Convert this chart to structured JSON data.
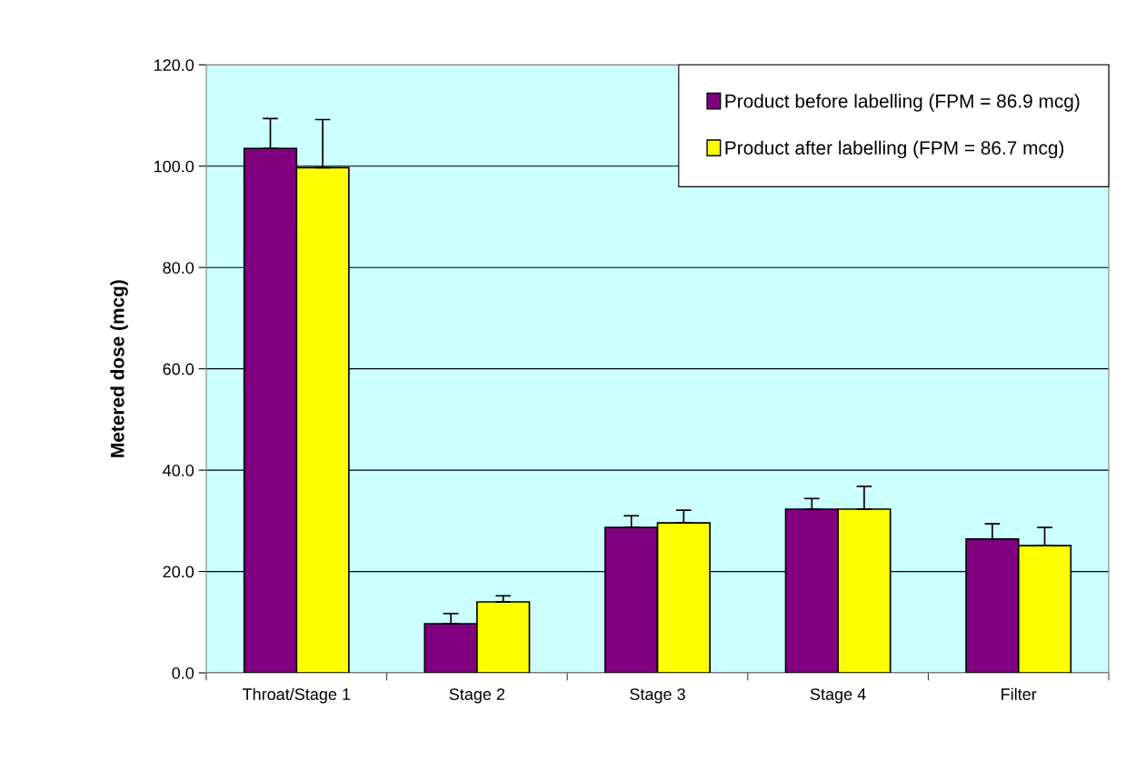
{
  "chart_data": {
    "type": "bar",
    "ylabel": "Metered dose (mcg)",
    "categories": [
      "Throat/Stage 1",
      "Stage 2",
      "Stage 3",
      "Stage 4",
      "Filter"
    ],
    "series": [
      {
        "name": "Product before labelling (FPM = 86.9 mcg)",
        "color": "#800080",
        "values": [
          103.5,
          9.7,
          28.7,
          32.3,
          26.4
        ],
        "errors": [
          [
            103.5,
            109.4
          ],
          [
            9.7,
            11.7
          ],
          [
            28.7,
            31.0
          ],
          [
            32.3,
            34.4
          ],
          [
            26.4,
            29.4
          ]
        ]
      },
      {
        "name": "Product after labelling (FPM = 86.7 mcg)",
        "color": "#ffff00",
        "values": [
          99.7,
          14.0,
          29.6,
          32.3,
          25.1
        ],
        "errors": [
          [
            99.7,
            109.2
          ],
          [
            14.0,
            15.2
          ],
          [
            29.6,
            32.1
          ],
          [
            32.3,
            36.8
          ],
          [
            25.1,
            28.7
          ]
        ]
      }
    ],
    "ylim": [
      0,
      120
    ],
    "yticks": [
      {
        "value": 0,
        "label": "0.0"
      },
      {
        "value": 20,
        "label": "20.0"
      },
      {
        "value": 40,
        "label": "40.0"
      },
      {
        "value": 60,
        "label": "60.0"
      },
      {
        "value": 80,
        "label": "80.0"
      },
      {
        "value": 100,
        "label": "100.0"
      },
      {
        "value": 120,
        "label": "120.0"
      }
    ],
    "grid": "y",
    "legend": "top right"
  }
}
